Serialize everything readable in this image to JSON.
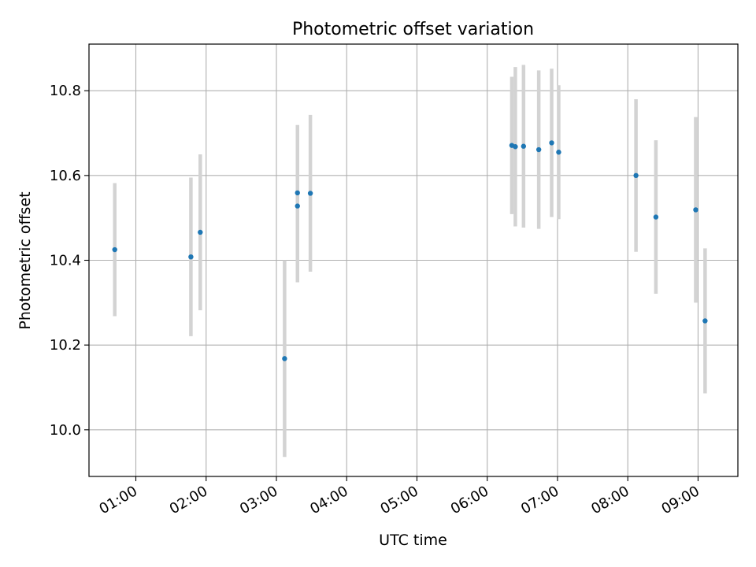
{
  "chart_data": {
    "type": "scatter",
    "title": "Photometric offset variation",
    "xlabel": "UTC time",
    "ylabel": "Photometric offset",
    "x_ticks": [
      "01:00",
      "02:00",
      "03:00",
      "04:00",
      "05:00",
      "06:00",
      "07:00",
      "08:00",
      "09:00"
    ],
    "y_ticks": [
      "10.0",
      "10.2",
      "10.4",
      "10.6",
      "10.8"
    ],
    "xlim": [
      "00:20",
      "09:34"
    ],
    "ylim": [
      9.89,
      10.91
    ],
    "grid": true,
    "points": [
      {
        "x": "00:42",
        "y": 10.425,
        "err": 0.157
      },
      {
        "x": "01:47",
        "y": 10.408,
        "err": 0.187
      },
      {
        "x": "01:55",
        "y": 10.466,
        "err": 0.184
      },
      {
        "x": "03:07",
        "y": 10.168,
        "err": 0.232
      },
      {
        "x": "03:18",
        "y": 10.528,
        "err": 0.18
      },
      {
        "x": "03:18",
        "y": 10.559,
        "err": 0.16
      },
      {
        "x": "03:29",
        "y": 10.558,
        "err": 0.185
      },
      {
        "x": "06:21",
        "y": 10.671,
        "err": 0.162
      },
      {
        "x": "06:24",
        "y": 10.668,
        "err": 0.188
      },
      {
        "x": "06:31",
        "y": 10.669,
        "err": 0.192
      },
      {
        "x": "06:44",
        "y": 10.661,
        "err": 0.187
      },
      {
        "x": "06:55",
        "y": 10.677,
        "err": 0.175
      },
      {
        "x": "07:01",
        "y": 10.655,
        "err": 0.158
      },
      {
        "x": "08:07",
        "y": 10.6,
        "err": 0.18
      },
      {
        "x": "08:24",
        "y": 10.502,
        "err": 0.181
      },
      {
        "x": "08:58",
        "y": 10.519,
        "err": 0.219
      },
      {
        "x": "09:06",
        "y": 10.257,
        "err": 0.171
      }
    ],
    "colors": {
      "marker": "#1f77b4",
      "errorbar": "#d3d3d3",
      "grid": "#b0b0b0",
      "axes": "#000000"
    }
  }
}
